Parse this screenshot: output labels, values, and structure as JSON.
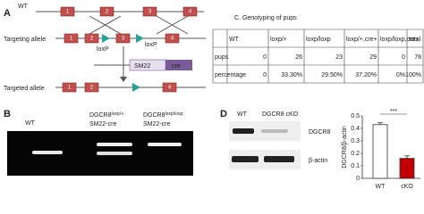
{
  "panel_a": {
    "label": "A",
    "wt": "WT",
    "exons": [
      "1",
      "2",
      "3",
      "4"
    ],
    "targeting_allele": "Targeting allele",
    "loxp": "loxP",
    "sm22": "SM22",
    "cre": "cre",
    "targeted_allele": "Targeted allele"
  },
  "panel_c": {
    "title": "C. Genotyping of pups",
    "table": {
      "header": [
        "WT",
        "loxp/+",
        "loxp/loxp",
        "loxp/+,cre+",
        "loxp/loxp,cre+",
        "total"
      ],
      "rows": [
        [
          "pups",
          0,
          26,
          23,
          29,
          0,
          78
        ],
        [
          "percentage",
          0,
          "33.30%",
          "29.50%",
          "37.20%",
          "0%",
          "100%"
        ]
      ]
    }
  },
  "panel_b": {
    "label": "B",
    "lanes": [
      {
        "name": "WT"
      },
      {
        "name": "DGCR8",
        "sup": "loxp/+;",
        "line2": "SM22-cre"
      },
      {
        "name": "DGCR8",
        "sup": "loxp/loxp;",
        "line2": "SM22-cre"
      }
    ]
  },
  "panel_d": {
    "label": "D",
    "lanes": [
      "WT",
      "DGCR8 cKO"
    ],
    "blots": [
      "DGCR8",
      "β-actin"
    ],
    "chart": {
      "type": "bar",
      "y_label": "DGCR8/β-actin",
      "categories": [
        "WT",
        "cKO"
      ],
      "values": [
        0.43,
        0.16
      ],
      "errors": [
        0.015,
        0.02
      ],
      "colors": [
        "#ffffff",
        "#c00000"
      ],
      "ylim": [
        0,
        0.5
      ],
      "yticks": [
        0,
        0.1,
        0.2,
        0.3,
        0.4,
        0.5
      ],
      "annotation": "***"
    }
  }
}
